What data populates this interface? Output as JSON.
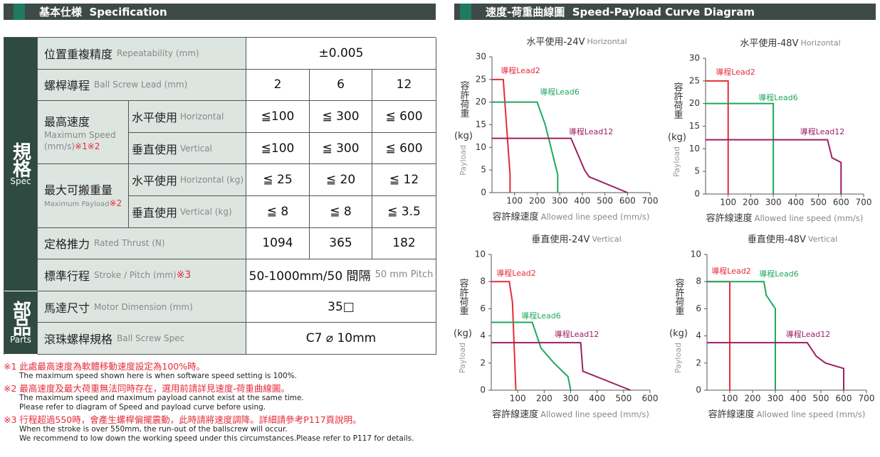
{
  "spec": {
    "title": "基本仕様",
    "title_en": "Specification",
    "category_spec": "規格",
    "category_spec_en": "Spec",
    "category_parts": "部品",
    "category_parts_en": "Parts",
    "rows": [
      {
        "label": "位置重複精度",
        "label_en": "Repeatability (mm)",
        "values": [
          "±0.005"
        ]
      },
      {
        "label": "螺桿導程",
        "label_en": "Ball Screw Lead (mm)",
        "values": [
          "2",
          "6",
          "12"
        ]
      },
      {
        "label": "最高速度",
        "label_en": "Maximum Speed",
        "unit": "(mm/s)",
        "note": "※1※2",
        "sub": [
          {
            "label": "水平使用",
            "label_en": "Horizontal",
            "values": [
              "≦100",
              "≦ 300",
              "≦ 600"
            ]
          },
          {
            "label": "垂直使用",
            "label_en": "Vertical",
            "values": [
              "≦100",
              "≦ 300",
              "≦ 600"
            ]
          }
        ]
      },
      {
        "label": "最大可搬重量",
        "label_en": "Maximum Payload",
        "note": "※2",
        "sub": [
          {
            "label": "水平使用",
            "label_en": "Horizontal (kg)",
            "values": [
              "≦ 25",
              "≦ 20",
              "≦ 12"
            ]
          },
          {
            "label": "垂直使用",
            "label_en": "Vertical (kg)",
            "values": [
              "≦ 8",
              "≦ 8",
              "≦ 3.5"
            ]
          }
        ]
      },
      {
        "label": "定格推力",
        "label_en": "Rated Thrust (N)",
        "values": [
          "1094",
          "365",
          "182"
        ]
      },
      {
        "label": "標準行程",
        "label_en": "Stroke / Pitch (mm)",
        "note": "※3",
        "values": [
          "50-1000mm/50 間隔"
        ],
        "value_en": "50 mm Pitch"
      },
      {
        "label": "馬達尺寸",
        "label_en": "Motor Dimension (mm)",
        "values": [
          "35□"
        ]
      },
      {
        "label": "滾珠螺桿規格",
        "label_en": "Ball Screw Spec",
        "values": [
          "C7 ⌀ 10mm"
        ]
      }
    ]
  },
  "notes": [
    {
      "text": "※1 此處最高速度為軟體移動速度設定為100%時。",
      "en": [
        "The maximum speed shown here is when software speed setting is 100%."
      ]
    },
    {
      "text": "※2 最高速度及最大荷重無法同時存在，選用前請詳見速度-荷重曲線圖。",
      "en": [
        "The maximum speed and maximum payload cannot exist at the same time.",
        "Please refer to diagram of Speed and payload curve before using."
      ]
    },
    {
      "text": "※3 行程超過550時，會產生螺桿偏擺震動，此時請將速度調降。詳細請參考P117頁說明。",
      "en": [
        "When the stroke is over 550mm, the run-out of the ballscrew will occur.",
        "We recommend to low down the working speed under this circumstances.Please refer to P117 for details."
      ]
    }
  ],
  "curve_section": {
    "title": "速度-荷重曲線圖",
    "title_en": "Speed-Payload Curve Diagram"
  },
  "chart_data": [
    {
      "type": "line",
      "title": "水平使用-24V",
      "title_en": "Horizontal",
      "x_label": "容許線速度",
      "x_label_en": "Allowed line speed (mm/s)",
      "y_label": "容許荷重",
      "y_unit": "(kg)",
      "y_label_en": "Payload",
      "xlim": [
        0,
        700
      ],
      "xticks": [
        100,
        200,
        300,
        400,
        500,
        600,
        700
      ],
      "ylim": [
        0,
        30
      ],
      "yticks": [
        0,
        5,
        10,
        15,
        20,
        25,
        30
      ],
      "series": [
        {
          "name": "導程Lead2",
          "color": "#e52b38",
          "x": [
            0,
            50,
            80,
            80
          ],
          "values": [
            25,
            25,
            4,
            0
          ]
        },
        {
          "name": "導程Lead6",
          "color": "#1fa85c",
          "x": [
            0,
            200,
            236,
            291,
            291
          ],
          "values": [
            20,
            20,
            15,
            4,
            0
          ]
        },
        {
          "name": "導程Lead12",
          "color": "#9c1f63",
          "x": [
            0,
            350,
            410,
            430,
            600
          ],
          "values": [
            12,
            12,
            5,
            3.5,
            0
          ]
        }
      ]
    },
    {
      "type": "line",
      "title": "水平使用-48V",
      "title_en": "Horizontal",
      "x_label": "容許線速度",
      "x_label_en": "Allowed line speed (mm/s)",
      "y_label": "容許荷重",
      "y_unit": "(kg)",
      "y_label_en": "Payload",
      "xlim": [
        0,
        700
      ],
      "xticks": [
        100,
        200,
        300,
        400,
        500,
        600,
        700
      ],
      "ylim": [
        0,
        30
      ],
      "yticks": [
        0,
        5,
        10,
        15,
        20,
        25,
        30
      ],
      "series": [
        {
          "name": "導程Lead2",
          "color": "#e52b38",
          "x": [
            0,
            100,
            100
          ],
          "values": [
            25,
            25,
            0
          ]
        },
        {
          "name": "導程Lead6",
          "color": "#1fa85c",
          "x": [
            0,
            300,
            300
          ],
          "values": [
            20,
            20,
            0
          ]
        },
        {
          "name": "導程Lead12",
          "color": "#9c1f63",
          "x": [
            0,
            540,
            560,
            600,
            600
          ],
          "values": [
            12,
            12,
            8,
            7,
            0
          ]
        }
      ]
    },
    {
      "type": "line",
      "title": "垂直使用-24V",
      "title_en": "Vertical",
      "x_label": "容許線速度",
      "x_label_en": "Allowed line speed (mm/s)",
      "y_label": "容許荷重",
      "y_unit": "(kg)",
      "y_label_en": "Payload",
      "xlim": [
        0,
        600
      ],
      "xticks": [
        100,
        200,
        300,
        400,
        500,
        600
      ],
      "ylim": [
        0,
        10
      ],
      "yticks": [
        0,
        2,
        4,
        6,
        8,
        10
      ],
      "series": [
        {
          "name": "導程Lead2",
          "color": "#e52b38",
          "x": [
            0,
            68,
            80,
            93
          ],
          "values": [
            8,
            8,
            6.5,
            0
          ]
        },
        {
          "name": "導程Lead6",
          "color": "#1fa85c",
          "x": [
            0,
            155,
            188,
            237,
            290,
            300
          ],
          "values": [
            5,
            5,
            3.1,
            2,
            1,
            0
          ]
        },
        {
          "name": "導程Lead12",
          "color": "#9c1f63",
          "x": [
            0,
            338,
            346,
            526
          ],
          "values": [
            3.5,
            3.5,
            1.4,
            0
          ]
        }
      ]
    },
    {
      "type": "line",
      "title": "垂直使用-48V",
      "title_en": "Vertical",
      "x_label": "容許線速度",
      "x_label_en": "Allowed line speed (mm/s)",
      "y_label": "容許荷重",
      "y_unit": "(kg)",
      "y_label_en": "Payload",
      "xlim": [
        0,
        700
      ],
      "xticks": [
        100,
        200,
        300,
        400,
        500,
        600,
        700
      ],
      "ylim": [
        0,
        10
      ],
      "yticks": [
        0,
        2,
        4,
        6,
        8,
        10
      ],
      "series": [
        {
          "name": "導程Lead2",
          "color": "#e52b38",
          "x": [
            0,
            100,
            100
          ],
          "values": [
            8,
            8,
            0
          ]
        },
        {
          "name": "導程Lead6",
          "color": "#1fa85c",
          "x": [
            0,
            250,
            260,
            300,
            300
          ],
          "values": [
            8,
            8,
            7,
            6,
            0
          ]
        },
        {
          "name": "導程Lead12",
          "color": "#9c1f63",
          "x": [
            0,
            440,
            480,
            520,
            600,
            600
          ],
          "values": [
            3.5,
            3.5,
            2.5,
            2,
            1.6,
            0
          ]
        }
      ]
    }
  ]
}
